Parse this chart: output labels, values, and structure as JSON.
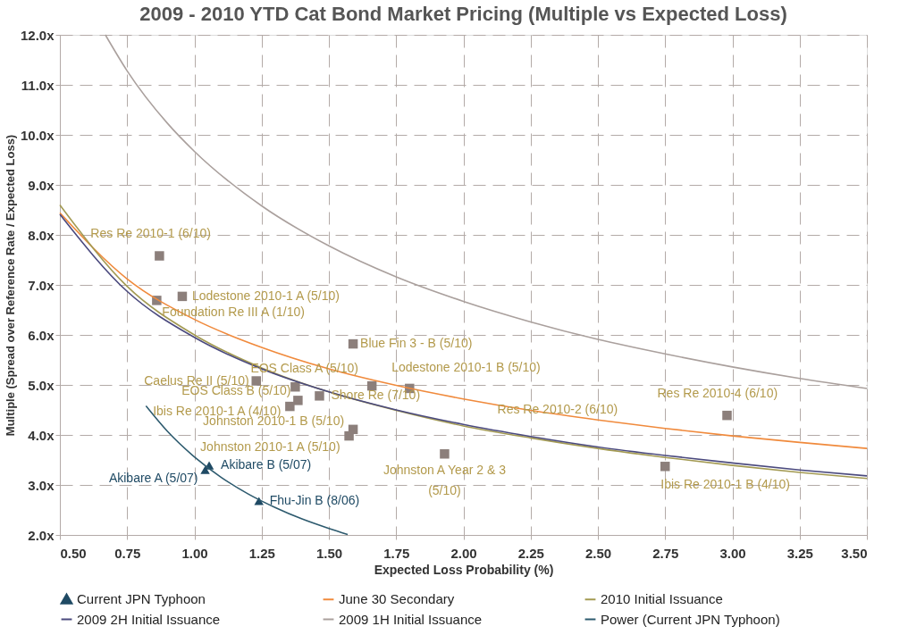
{
  "chart_data": {
    "type": "scatter",
    "title": "2009 - 2010 YTD Cat Bond Market Pricing (Multiple vs Expected Loss)",
    "xlabel": "Expected Loss Probability (%)",
    "ylabel": "Multiple (Spread over Reference Rate / Expected Loss)",
    "xlim": [
      0.5,
      3.5
    ],
    "ylim": [
      2.0,
      12.0
    ],
    "xticks": [
      {
        "value": 0.5,
        "label": "0.50"
      },
      {
        "value": 0.75,
        "label": "0.75"
      },
      {
        "value": 1.0,
        "label": "1.00"
      },
      {
        "value": 1.25,
        "label": "1.25"
      },
      {
        "value": 1.5,
        "label": "1.50"
      },
      {
        "value": 1.75,
        "label": "1.75"
      },
      {
        "value": 2.0,
        "label": "2.00"
      },
      {
        "value": 2.25,
        "label": "2.25"
      },
      {
        "value": 2.5,
        "label": "2.50"
      },
      {
        "value": 2.75,
        "label": "2.75"
      },
      {
        "value": 3.0,
        "label": "3.00"
      },
      {
        "value": 3.25,
        "label": "3.25"
      },
      {
        "value": 3.5,
        "label": "3.50"
      }
    ],
    "yticks": [
      {
        "value": 2,
        "label": "2.0x"
      },
      {
        "value": 3,
        "label": "3.0x"
      },
      {
        "value": 4,
        "label": "4.0x"
      },
      {
        "value": 5,
        "label": "5.0x"
      },
      {
        "value": 6,
        "label": "6.0x"
      },
      {
        "value": 7,
        "label": "7.0x"
      },
      {
        "value": 8,
        "label": "8.0x"
      },
      {
        "value": 9,
        "label": "9.0x"
      },
      {
        "value": 10,
        "label": "10.0x"
      },
      {
        "value": 11,
        "label": "11.0x"
      },
      {
        "value": 12,
        "label": "12.0x"
      }
    ],
    "grid": true,
    "legend": "bottom",
    "annotations": [
      {
        "text": "Res Re 2010-2 (6/10)",
        "x": 2.35,
        "y": 4.5
      }
    ],
    "series": [
      {
        "marker": "square",
        "color": "#8c7f7b",
        "x": [
          0.87,
          0.86,
          0.955,
          1.59,
          1.23,
          1.375,
          1.385,
          1.355,
          1.465,
          1.66,
          1.8,
          1.59,
          1.575,
          1.93,
          2.98,
          2.75
        ],
        "values": [
          7.58,
          6.69,
          6.77,
          5.82,
          5.08,
          4.96,
          4.69,
          4.57,
          4.78,
          4.98,
          4.93,
          4.11,
          3.98,
          3.62,
          4.39,
          3.37
        ],
        "value_labels": [
          "Res Re 2010-1 (6/10)",
          "Foundation Re III A (1/10)",
          "Lodestone 2010-1 A (5/10)",
          "Blue Fin 3 - B (5/10)",
          "Caelus Re II (5/10)",
          "EOS Class A (5/10)",
          "EOS Class B (5/10)",
          "Ibis Re 2010-1 A (4/10)",
          "Shore Re (7/10)",
          "Lodestone 2010-1 B (5/10)",
          null,
          "Johnston 2010-1 B (5/10)",
          "Johnston 2010-1 A (5/10)",
          "Johnston A Year 2 & 3\n(5/10)",
          "Res Re 2010-4 (6/10)",
          "Ibis Re 2010-1 B (4/10)"
        ]
      },
      {
        "type": "scatter",
        "marker": "triangle",
        "name": "Current JPN Typhoon",
        "color": "#1f4a64",
        "x": [
          1.04,
          1.055,
          1.24
        ],
        "values": [
          3.3,
          3.39,
          2.68
        ],
        "value_labels": [
          "Akibare A (5/07)",
          "Akibare B (5/07)",
          "Fhu-Jin B (8/06)"
        ]
      },
      {
        "type": "line",
        "name": "June 30 Secondary",
        "color": "#f08a3c",
        "x": [
          0.5,
          0.75,
          1.0,
          1.25,
          1.5,
          1.75,
          2.0,
          2.25,
          2.5,
          2.75,
          3.0,
          3.25,
          3.5
        ],
        "values": [
          8.44,
          7.12,
          6.31,
          5.75,
          5.32,
          4.99,
          4.72,
          4.49,
          4.3,
          4.13,
          3.98,
          3.85,
          3.73
        ]
      },
      {
        "type": "line",
        "name": "2010 Initial Issuance",
        "color": "#a39a52",
        "x": [
          0.5,
          0.75,
          1.0,
          1.25,
          1.5,
          1.75,
          2.0,
          2.25,
          2.5,
          2.75,
          3.0,
          3.25,
          3.5
        ],
        "values": [
          8.6,
          6.97,
          6.0,
          5.34,
          4.86,
          4.49,
          4.18,
          3.94,
          3.73,
          3.55,
          3.39,
          3.25,
          3.13
        ]
      },
      {
        "type": "line",
        "name": "2009 2H Initial Issuance",
        "color": "#4b4a7e",
        "x": [
          0.5,
          0.75,
          1.0,
          1.25,
          1.5,
          1.75,
          2.0,
          2.25,
          2.5,
          2.75,
          3.0,
          3.25,
          3.5
        ],
        "values": [
          8.41,
          6.87,
          5.95,
          5.32,
          4.86,
          4.5,
          4.21,
          3.97,
          3.76,
          3.59,
          3.44,
          3.3,
          3.18
        ]
      },
      {
        "type": "line",
        "name": "2009 1H Initial Issuance",
        "color": "#aaa09d",
        "x": [
          0.669,
          0.75,
          0.9,
          1.0,
          1.25,
          1.5,
          1.75,
          2.0,
          2.25,
          2.5,
          2.75,
          3.0,
          3.25,
          3.5
        ],
        "values": [
          12.0,
          11.28,
          10.23,
          9.67,
          8.58,
          7.78,
          7.16,
          6.67,
          6.26,
          5.91,
          5.62,
          5.36,
          5.13,
          4.93
        ]
      },
      {
        "type": "line",
        "name": "Power (Current JPN Typhoon)",
        "color": "#2d5a6e",
        "x": [
          0.82,
          0.9,
          1.0,
          1.1,
          1.2,
          1.3,
          1.4,
          1.5,
          1.57
        ],
        "values": [
          4.58,
          4.07,
          3.56,
          3.15,
          2.82,
          2.55,
          2.32,
          2.13,
          2.01
        ]
      }
    ]
  }
}
